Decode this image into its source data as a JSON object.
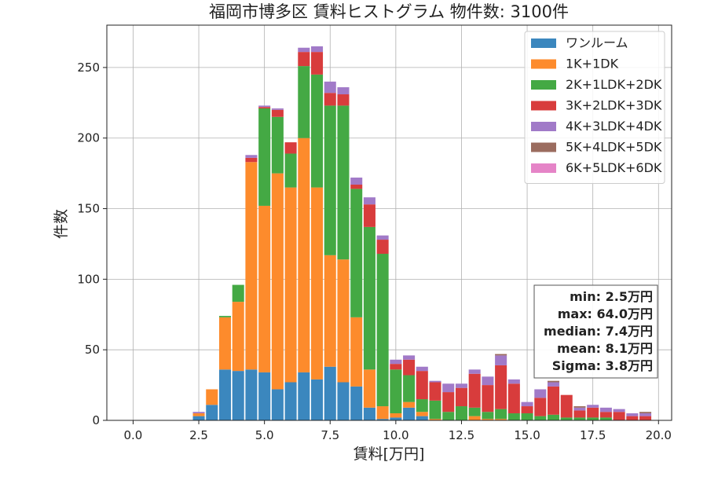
{
  "chart_data": {
    "type": "bar",
    "stacked": true,
    "title": "福岡市博多区 賃料ヒストグラム 物件数: 3100件",
    "xlabel": "賃料[万円]",
    "ylabel": "件数",
    "xlim": [
      -1.0,
      20.5
    ],
    "ylim": [
      0,
      280
    ],
    "x_ticks": [
      0.0,
      2.5,
      5.0,
      7.5,
      10.0,
      12.5,
      15.0,
      17.5,
      20.0
    ],
    "y_ticks": [
      0,
      50,
      100,
      150,
      200,
      250
    ],
    "x_tick_labels": [
      "0.0",
      "2.5",
      "5.0",
      "7.5",
      "10.0",
      "12.5",
      "15.0",
      "17.5",
      "20.0"
    ],
    "y_tick_labels": [
      "0",
      "50",
      "100",
      "150",
      "200",
      "250"
    ],
    "grid": true,
    "legend_position": "top-right",
    "bin_width": 0.5,
    "x": [
      2.5,
      3.0,
      3.5,
      4.0,
      4.5,
      5.0,
      5.5,
      6.0,
      6.5,
      7.0,
      7.5,
      8.0,
      8.5,
      9.0,
      9.5,
      10.0,
      10.5,
      11.0,
      11.5,
      12.0,
      12.5,
      13.0,
      13.5,
      14.0,
      14.5,
      15.0,
      15.5,
      16.0,
      16.5,
      17.0,
      17.5,
      18.0,
      18.5,
      19.0,
      19.5
    ],
    "series": [
      {
        "name": "ワンルーム",
        "color": "#3b87be",
        "values": [
          3,
          11,
          36,
          35,
          36,
          34,
          22,
          27,
          34,
          29,
          38,
          27,
          24,
          9,
          1,
          2,
          9,
          3,
          0,
          0,
          0,
          0,
          0,
          0,
          0,
          0,
          0,
          0,
          0,
          0,
          0,
          0,
          0,
          0,
          0
        ]
      },
      {
        "name": "1K+1DK",
        "color": "#fd8b2c",
        "values": [
          2,
          11,
          37,
          49,
          147,
          118,
          153,
          138,
          166,
          136,
          79,
          87,
          49,
          27,
          9,
          3,
          4,
          3,
          1,
          0,
          0,
          3,
          1,
          1,
          0,
          0,
          0,
          0,
          0,
          0,
          0,
          0,
          0,
          0,
          0
        ]
      },
      {
        "name": "2K+1LDK+2DK",
        "color": "#44a944",
        "values": [
          0,
          0,
          1,
          12,
          0,
          69,
          40,
          24,
          51,
          80,
          106,
          109,
          91,
          101,
          108,
          31,
          19,
          9,
          13,
          6,
          10,
          6,
          5,
          7,
          5,
          5,
          3,
          4,
          2,
          2,
          2,
          2,
          0,
          0,
          0
        ]
      },
      {
        "name": "3K+2LDK+3DK",
        "color": "#d83c3c",
        "values": [
          0,
          0,
          0,
          0,
          3,
          1,
          5,
          8,
          10,
          16,
          9,
          8,
          3,
          16,
          10,
          4,
          11,
          20,
          13,
          14,
          13,
          24,
          19,
          31,
          21,
          5,
          13,
          20,
          16,
          5,
          7,
          4,
          6,
          3,
          3
        ]
      },
      {
        "name": "4K+3LDK+4DK",
        "color": "#a17ac8",
        "values": [
          1,
          0,
          0,
          0,
          2,
          1,
          1,
          0,
          3,
          4,
          8,
          5,
          5,
          5,
          3,
          3,
          3,
          3,
          1,
          6,
          3,
          3,
          6,
          7,
          3,
          3,
          6,
          3,
          0,
          2,
          2,
          3,
          2,
          2,
          2
        ]
      },
      {
        "name": "5K+4LDK+5DK",
        "color": "#9b6c5f",
        "values": [
          0,
          0,
          0,
          0,
          0,
          0,
          0,
          0,
          0,
          0,
          0,
          0,
          0,
          0,
          0,
          0,
          0,
          0,
          0,
          0,
          0,
          0,
          0,
          1,
          0,
          0,
          0,
          1,
          0,
          1,
          0,
          0,
          0,
          0,
          1
        ]
      },
      {
        "name": "6K+5LDK+6DK",
        "color": "#e584c7",
        "values": [
          0,
          0,
          0,
          0,
          0,
          0,
          0,
          0,
          0,
          0,
          0,
          0,
          0,
          0,
          0,
          0,
          0,
          0,
          0,
          0,
          0,
          0,
          0,
          0,
          0,
          0,
          0,
          0,
          0,
          0,
          0,
          0,
          0,
          0,
          0
        ]
      }
    ],
    "stats": [
      "min: 2.5万円",
      "max: 64.0万円",
      "median: 7.4万円",
      "mean: 8.1万円",
      "Sigma: 3.8万円"
    ]
  }
}
